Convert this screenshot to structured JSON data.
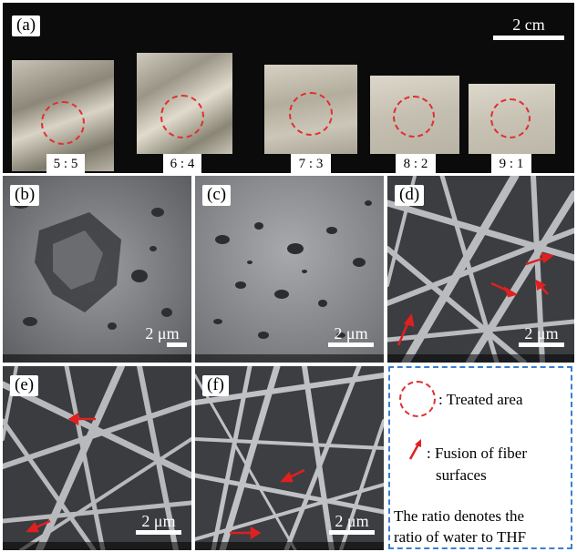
{
  "panel_a": {
    "tag": "(a)",
    "scale_label": "2 cm",
    "samples": [
      {
        "label": "5 : 5"
      },
      {
        "label": "6 : 4"
      },
      {
        "label": "7 : 3"
      },
      {
        "label": "8 : 2"
      },
      {
        "label": "9 : 1"
      }
    ]
  },
  "panels": {
    "b": {
      "tag": "(b)",
      "scale_label": "2 μm"
    },
    "c": {
      "tag": "(c)",
      "scale_label": "2 μm"
    },
    "d": {
      "tag": "(d)",
      "scale_label": "2 μm"
    },
    "e": {
      "tag": "(e)",
      "scale_label": "2 μm"
    },
    "f": {
      "tag": "(f)",
      "scale_label": "2 μm"
    }
  },
  "legend": {
    "treated_area": ": Treated area",
    "fusion_line1": ": Fusion of fiber",
    "fusion_line2": "surfaces",
    "ratio_line1": "The ratio denotes the",
    "ratio_line2": "ratio of water to THF"
  },
  "colors": {
    "marker_red": "#e03030",
    "legend_border": "#3a7fd0"
  }
}
